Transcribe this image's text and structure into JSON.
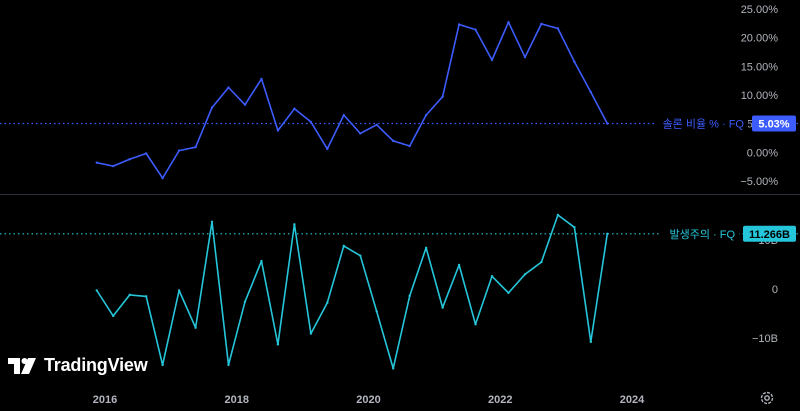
{
  "chart_data": [
    {
      "type": "line",
      "series": [
        {
          "name": "솔론 비율 % · FQ",
          "color": "#3d5cff",
          "last_value_label": "5.03%",
          "x": [
            "2015-Q4",
            "2016-Q1",
            "2016-Q2",
            "2016-Q3",
            "2016-Q4",
            "2017-Q1",
            "2017-Q2",
            "2017-Q3",
            "2017-Q4",
            "2018-Q1",
            "2018-Q2",
            "2018-Q3",
            "2018-Q4",
            "2019-Q1",
            "2019-Q2",
            "2019-Q3",
            "2019-Q4",
            "2020-Q1",
            "2020-Q2",
            "2020-Q3",
            "2020-Q4",
            "2021-Q1",
            "2021-Q2",
            "2021-Q3",
            "2021-Q4",
            "2022-Q1",
            "2022-Q2",
            "2022-Q3",
            "2022-Q4",
            "2023-Q1",
            "2023-Q2",
            "2023-Q3"
          ],
          "values": [
            -1.8,
            -2.4,
            -1.2,
            -0.2,
            -4.5,
            0.3,
            0.9,
            7.8,
            11.3,
            8.3,
            12.8,
            3.8,
            7.6,
            5.3,
            0.6,
            6.5,
            3.3,
            4.8,
            2.0,
            1.1,
            6.5,
            9.7,
            22.3,
            21.4,
            16.1,
            22.7,
            16.6,
            22.4,
            21.6,
            15.8,
            10.5,
            5.03
          ]
        }
      ],
      "ylim": [
        -6,
        25
      ],
      "yticks": [
        -5,
        0,
        5,
        10,
        15,
        20,
        25
      ],
      "ytick_labels": [
        "−5.00%",
        "0.00%",
        "5.00%",
        "10.00%",
        "15.00%",
        "20.00%",
        "25.00%"
      ]
    },
    {
      "type": "line",
      "series": [
        {
          "name": "발생주의 · FQ",
          "color": "#26c6da",
          "last_value_label": "11.266B",
          "x": [
            "2015-Q4",
            "2016-Q1",
            "2016-Q2",
            "2016-Q3",
            "2016-Q4",
            "2017-Q1",
            "2017-Q2",
            "2017-Q3",
            "2017-Q4",
            "2018-Q1",
            "2018-Q2",
            "2018-Q3",
            "2018-Q4",
            "2019-Q1",
            "2019-Q2",
            "2019-Q3",
            "2019-Q4",
            "2020-Q1",
            "2020-Q2",
            "2020-Q3",
            "2020-Q4",
            "2021-Q1",
            "2021-Q2",
            "2021-Q3",
            "2021-Q4",
            "2022-Q1",
            "2022-Q2",
            "2022-Q3",
            "2022-Q4",
            "2023-Q1",
            "2023-Q2",
            "2023-Q3"
          ],
          "values": [
            -0.3,
            -5.5,
            -1.2,
            -1.5,
            -15.5,
            -0.3,
            -7.9,
            13.7,
            -15.5,
            -2.6,
            5.7,
            -11.3,
            13.2,
            -9.1,
            -2.8,
            8.8,
            6.8,
            -4.6,
            -16.2,
            -1.4,
            8.4,
            -3.8,
            4.9,
            -7.2,
            2.6,
            -0.8,
            3.0,
            5.5,
            15.1,
            12.6,
            -10.8,
            11.266
          ]
        }
      ],
      "ylim": [
        -17,
        16
      ],
      "yticks": [
        -10,
        0,
        10
      ],
      "ytick_labels": [
        "−10B",
        "0",
        "10B"
      ]
    }
  ],
  "x_axis": {
    "ticks": [
      "2016",
      "2018",
      "2020",
      "2022",
      "2024"
    ]
  },
  "branding": {
    "logo_text": "TradingView"
  },
  "icons": {
    "settings": "gear-icon"
  },
  "colors": {
    "background": "#000000",
    "axis_text": "#b2b5be",
    "divider": "#2a2e39"
  }
}
